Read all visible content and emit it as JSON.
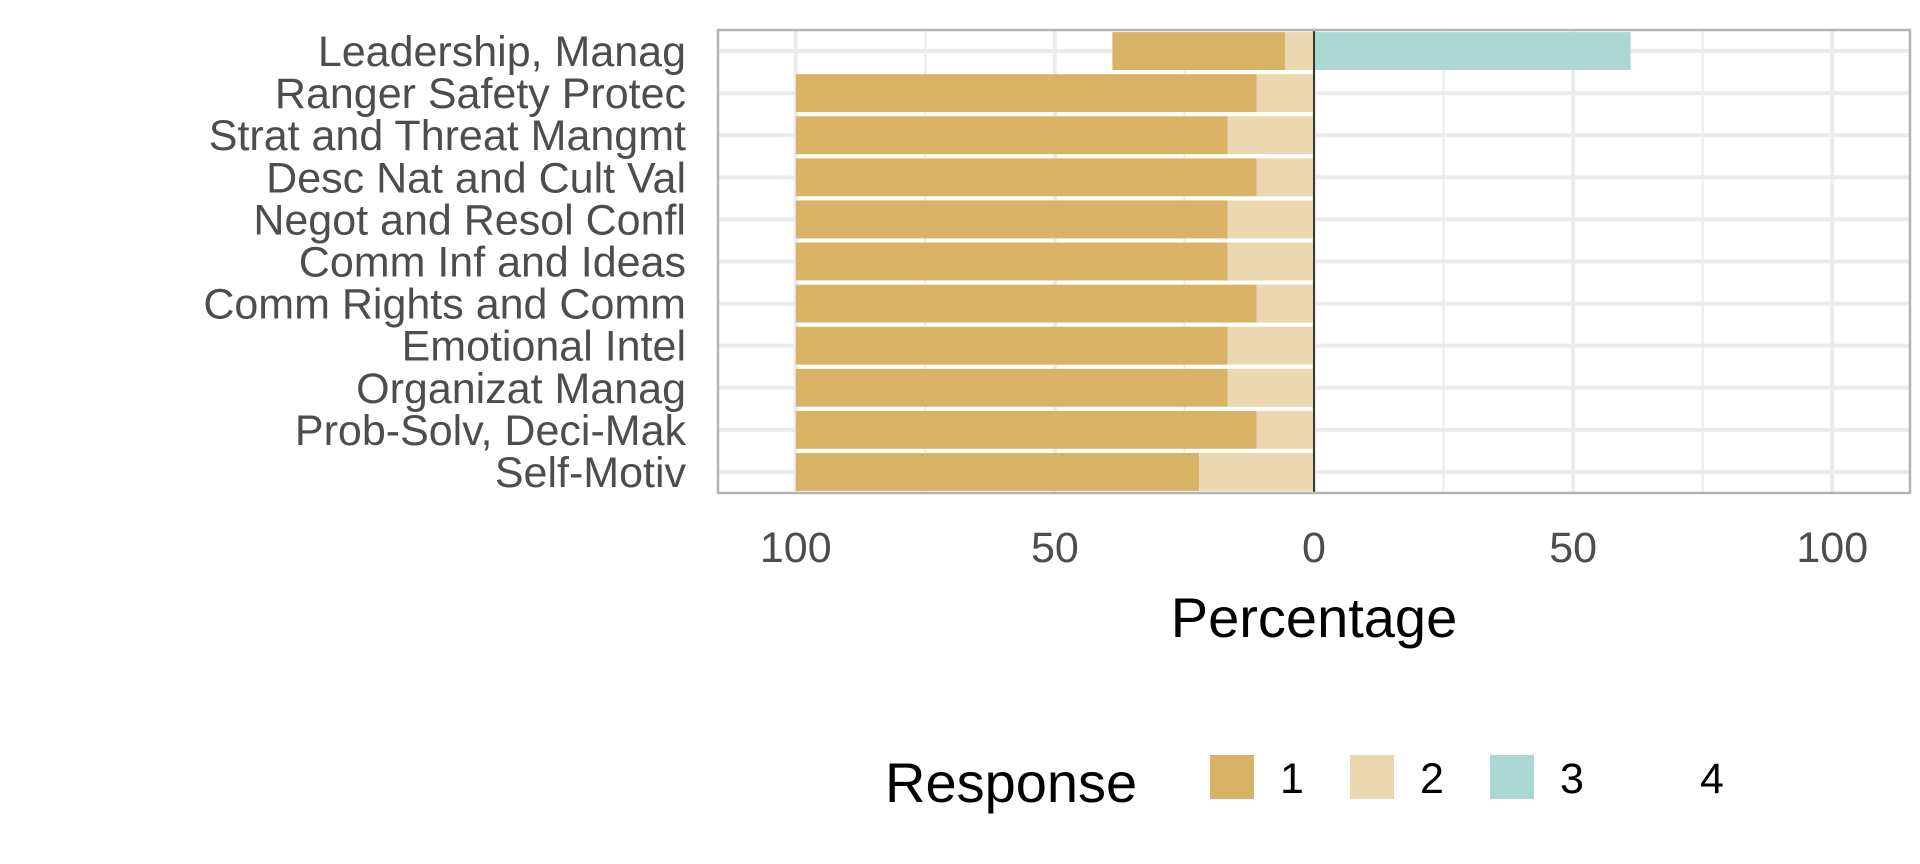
{
  "chart_data": {
    "type": "bar",
    "orientation": "horizontal",
    "diverging": true,
    "title": "",
    "xlabel": "Percentage",
    "ylabel": "",
    "xlim": [
      -115,
      115
    ],
    "x_ticks": [
      -100,
      -50,
      0,
      50,
      100
    ],
    "x_tick_labels": [
      "100",
      "50",
      "0",
      "50",
      "100"
    ],
    "grid": true,
    "legend_placement": "bottom",
    "categories": [
      "Leadership, Manag",
      "Ranger Safety Protec",
      "Strat and Threat Mangmt",
      "Desc Nat and Cult Val",
      "Negot and Resol Confl",
      "Comm Inf and Ideas",
      "Comm Rights and Comm",
      "Emotional Intel",
      "Organizat Manag",
      "Prob-Solv, Deci-Mak",
      "Self-Motiv"
    ],
    "series": [
      {
        "name": "1",
        "color": "#D8B365",
        "side": "negative",
        "values": [
          33.3,
          88.9,
          83.3,
          88.9,
          83.3,
          83.3,
          88.9,
          83.3,
          83.3,
          88.9,
          77.8
        ]
      },
      {
        "name": "2",
        "color": "#EBD8B0",
        "side": "negative",
        "values": [
          5.6,
          11.1,
          16.7,
          11.1,
          16.7,
          16.7,
          11.1,
          16.7,
          16.7,
          11.1,
          22.2
        ]
      },
      {
        "name": "3",
        "color": "#ACD8D3",
        "side": "positive",
        "values": [
          61.1,
          0,
          0,
          0,
          0,
          0,
          0,
          0,
          0,
          0,
          0
        ]
      },
      {
        "name": "4",
        "color": "#5AB4AC",
        "side": "positive",
        "values": [
          0,
          0,
          0,
          0,
          0,
          0,
          0,
          0,
          0,
          0,
          0
        ]
      }
    ],
    "legend": {
      "title": "Response",
      "items": [
        "1",
        "2",
        "3",
        "4"
      ]
    },
    "colors": {
      "panel_border": "#b3b3b3",
      "grid_major": "#ebebeb",
      "zero_line": "#000000"
    }
  }
}
